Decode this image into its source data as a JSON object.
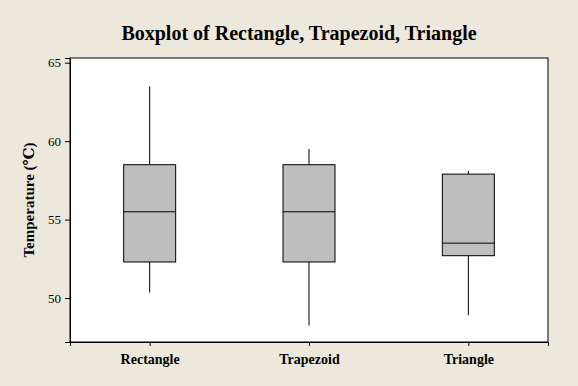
{
  "chart_data": {
    "type": "box",
    "title": "Boxplot of Rectangle, Trapezoid, Triangle",
    "y_label": "Temperature (℃)",
    "categories": [
      "Rectangle",
      "Trapezoid",
      "Triangle"
    ],
    "boxes": [
      {
        "min": 50.35,
        "q1": 52.3,
        "median": 55.5,
        "q3": 58.5,
        "max": 63.5
      },
      {
        "min": 48.25,
        "q1": 52.3,
        "median": 55.5,
        "q3": 58.5,
        "max": 59.5
      },
      {
        "min": 48.9,
        "q1": 52.7,
        "median": 53.5,
        "q3": 57.9,
        "max": 58.1
      }
    ],
    "color": "#bebebe",
    "ylim": [
      47.2,
      65.3
    ],
    "yticks": [
      50,
      55,
      60,
      65
    ]
  }
}
